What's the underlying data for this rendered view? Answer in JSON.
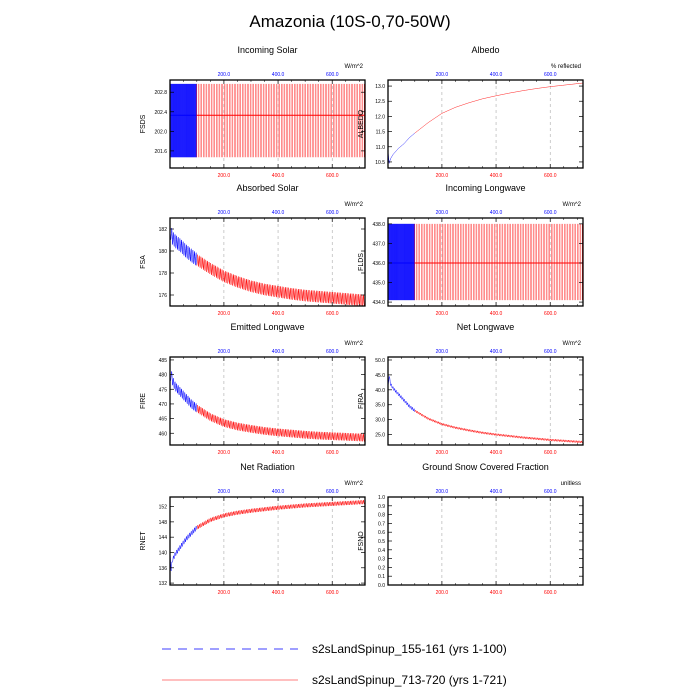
{
  "figure": {
    "title": "Amazonia (10S-0,70-50W)",
    "legend": [
      {
        "label": "s2sLandSpinup_155-161 (yrs 1-100)",
        "color": "#0000ff",
        "style": "dashed"
      },
      {
        "label": "s2sLandSpinup_713-720 (yrs 1-721)",
        "color": "#ff0000",
        "style": "solid"
      }
    ],
    "x_ticks": [
      "200.0",
      "400.0",
      "600.0"
    ]
  },
  "chart_data": [
    {
      "type": "line",
      "title": "Incoming Solar",
      "ylabel": "FSDS",
      "units": "W/m^2",
      "xlim": [
        1,
        721
      ],
      "ylim": [
        201.25,
        203.05
      ],
      "yticks": [
        "201.6",
        "202.0",
        "202.4",
        "202.8"
      ],
      "yticks_values": [
        201.6,
        202.0,
        202.4,
        202.8
      ],
      "series": [
        {
          "name": "s2sLandSpinup_155-161 (yrs 1-100)",
          "color": "#0000ff",
          "band_low": [
            201.47,
            201.47
          ],
          "band_high": [
            202.97,
            202.97
          ],
          "band_mid": [
            202.33,
            202.33
          ],
          "x": [
            1,
            100
          ]
        },
        {
          "name": "s2sLandSpinup_713-720 (yrs 1-721)",
          "color": "#ff0000",
          "band_low": [
            201.47,
            201.47
          ],
          "band_high": [
            202.97,
            202.97
          ],
          "band_mid": [
            202.33,
            202.33
          ],
          "x": [
            100,
            721
          ]
        }
      ]
    },
    {
      "type": "line",
      "title": "Albedo",
      "ylabel": "ALBEDO",
      "units": "% reflected",
      "xlim": [
        1,
        721
      ],
      "ylim": [
        10.3,
        13.2
      ],
      "yticks": [
        "10.5",
        "11.0",
        "11.5",
        "12.0",
        "12.5",
        "13.0"
      ],
      "yticks_values": [
        10.5,
        11.0,
        11.5,
        12.0,
        12.5,
        13.0
      ],
      "series": [
        {
          "name": "s2sLandSpinup_155-161 (yrs 1-100)",
          "color": "#0000ff",
          "x": [
            1,
            5,
            10,
            20,
            40,
            60,
            80,
            100
          ],
          "y": [
            10.9,
            10.45,
            10.6,
            10.75,
            10.95,
            11.1,
            11.3,
            11.45
          ]
        },
        {
          "name": "s2sLandSpinup_713-720 (yrs 1-721)",
          "color": "#ff0000",
          "x": [
            100,
            150,
            200,
            250,
            300,
            350,
            400,
            450,
            500,
            550,
            600,
            650,
            700,
            721
          ],
          "y": [
            11.45,
            11.8,
            12.1,
            12.3,
            12.45,
            12.58,
            12.68,
            12.77,
            12.85,
            12.92,
            12.98,
            13.03,
            13.08,
            13.1
          ]
        }
      ]
    },
    {
      "type": "line",
      "title": "Absorbed Solar",
      "ylabel": "FSA",
      "units": "W/m^2",
      "xlim": [
        1,
        721
      ],
      "ylim": [
        175.0,
        183.0
      ],
      "yticks": [
        "176",
        "178",
        "180",
        "182"
      ],
      "yticks_values": [
        176,
        178,
        180,
        182
      ],
      "series": [
        {
          "name": "s2sLandSpinup_155-161 (yrs 1-100)",
          "color": "#0000ff",
          "x": [
            1,
            5,
            10,
            20,
            40,
            60,
            80,
            100
          ],
          "y": [
            180.8,
            181.8,
            181.2,
            180.9,
            180.5,
            180.0,
            179.6,
            179.2
          ],
          "amp": 0.6
        },
        {
          "name": "s2sLandSpinup_713-720 (yrs 1-721)",
          "color": "#ff0000",
          "x": [
            100,
            150,
            200,
            250,
            300,
            350,
            400,
            450,
            500,
            550,
            600,
            650,
            700,
            721
          ],
          "y": [
            179.2,
            178.4,
            177.7,
            177.2,
            176.8,
            176.5,
            176.3,
            176.1,
            175.95,
            175.85,
            175.75,
            175.65,
            175.55,
            175.5
          ],
          "amp": 0.6
        }
      ]
    },
    {
      "type": "line",
      "title": "Incoming Longwave",
      "ylabel": "FLDS",
      "units": "W/m^2",
      "xlim": [
        1,
        721
      ],
      "ylim": [
        433.8,
        438.3
      ],
      "yticks": [
        "434.0",
        "435.0",
        "436.0",
        "437.0",
        "438.0"
      ],
      "yticks_values": [
        434,
        435,
        436,
        437,
        438
      ],
      "series": [
        {
          "name": "s2sLandSpinup_155-161 (yrs 1-100)",
          "color": "#0000ff",
          "band_low": [
            434.1,
            434.1
          ],
          "band_high": [
            438.0,
            438.0
          ],
          "band_mid": [
            436.0,
            436.0
          ],
          "x": [
            1,
            100
          ]
        },
        {
          "name": "s2sLandSpinup_713-720 (yrs 1-721)",
          "color": "#ff0000",
          "band_low": [
            434.1,
            434.1
          ],
          "band_high": [
            438.0,
            438.0
          ],
          "band_mid": [
            436.0,
            436.0
          ],
          "x": [
            100,
            721
          ]
        }
      ]
    },
    {
      "type": "line",
      "title": "Emitted Longwave",
      "ylabel": "FIRE",
      "units": "W/m^2",
      "xlim": [
        1,
        721
      ],
      "ylim": [
        456.0,
        486.0
      ],
      "yticks": [
        "460",
        "465",
        "470",
        "475",
        "480",
        "485"
      ],
      "yticks_values": [
        460,
        465,
        470,
        475,
        480,
        485
      ],
      "series": [
        {
          "name": "s2sLandSpinup_155-161 (yrs 1-100)",
          "color": "#0000ff",
          "x": [
            1,
            5,
            10,
            20,
            40,
            60,
            80,
            100
          ],
          "y": [
            475,
            481,
            478,
            476,
            474,
            472,
            470,
            468.5
          ],
          "amp": 1.5
        },
        {
          "name": "s2sLandSpinup_713-720 (yrs 1-721)",
          "color": "#ff0000",
          "x": [
            100,
            150,
            200,
            250,
            300,
            350,
            400,
            450,
            500,
            550,
            600,
            650,
            700,
            721
          ],
          "y": [
            468.5,
            465.5,
            463.5,
            462.3,
            461.5,
            460.8,
            460.3,
            459.9,
            459.5,
            459.2,
            459.0,
            458.8,
            458.6,
            458.5
          ],
          "amp": 1.5
        }
      ]
    },
    {
      "type": "line",
      "title": "Net Longwave",
      "ylabel": "FIRA",
      "units": "W/m^2",
      "xlim": [
        1,
        721
      ],
      "ylim": [
        21.5,
        51.0
      ],
      "yticks": [
        "25.0",
        "30.0",
        "35.0",
        "40.0",
        "45.0",
        "50.0"
      ],
      "yticks_values": [
        25,
        30,
        35,
        40,
        45,
        50
      ],
      "series": [
        {
          "name": "s2sLandSpinup_155-161 (yrs 1-100)",
          "color": "#0000ff",
          "x": [
            1,
            5,
            10,
            20,
            40,
            60,
            80,
            100
          ],
          "y": [
            40,
            45,
            42,
            40.5,
            38.5,
            36.5,
            34.5,
            33
          ],
          "amp": 0.5
        },
        {
          "name": "s2sLandSpinup_713-720 (yrs 1-721)",
          "color": "#ff0000",
          "x": [
            100,
            150,
            200,
            250,
            300,
            350,
            400,
            450,
            500,
            550,
            600,
            650,
            700,
            721
          ],
          "y": [
            33,
            30.3,
            28.5,
            27.3,
            26.4,
            25.6,
            25.0,
            24.5,
            24.0,
            23.6,
            23.2,
            22.9,
            22.6,
            22.5
          ],
          "amp": 0.4
        }
      ]
    },
    {
      "type": "line",
      "title": "Net Radiation",
      "ylabel": "RNET",
      "units": "W/m^2",
      "xlim": [
        1,
        721
      ],
      "ylim": [
        131.5,
        154.5
      ],
      "yticks": [
        "132",
        "136",
        "140",
        "144",
        "148",
        "152"
      ],
      "yticks_values": [
        132,
        136,
        140,
        144,
        148,
        152
      ],
      "series": [
        {
          "name": "s2sLandSpinup_155-161 (yrs 1-100)",
          "color": "#0000ff",
          "x": [
            1,
            5,
            10,
            20,
            40,
            60,
            80,
            100
          ],
          "y": [
            140,
            135.5,
            138,
            139.5,
            141.5,
            143.5,
            145,
            146.5
          ],
          "amp": 0.6
        },
        {
          "name": "s2sLandSpinup_713-720 (yrs 1-721)",
          "color": "#ff0000",
          "x": [
            100,
            150,
            200,
            250,
            300,
            350,
            400,
            450,
            500,
            550,
            600,
            650,
            700,
            721
          ],
          "y": [
            146.5,
            148.5,
            149.7,
            150.4,
            150.9,
            151.3,
            151.7,
            152.0,
            152.3,
            152.5,
            152.7,
            152.9,
            153.1,
            153.2
          ],
          "amp": 0.6
        }
      ]
    },
    {
      "type": "line",
      "title": "Ground Snow Covered Fraction",
      "ylabel": "FSNO",
      "units": "unitless",
      "xlim": [
        1,
        721
      ],
      "ylim": [
        0.0,
        1.0
      ],
      "yticks": [
        "0.0",
        "0.1",
        "0.2",
        "0.3",
        "0.4",
        "0.5",
        "0.6",
        "0.7",
        "0.8",
        "0.9",
        "1.0"
      ],
      "yticks_values": [
        0,
        0.1,
        0.2,
        0.3,
        0.4,
        0.5,
        0.6,
        0.7,
        0.8,
        0.9,
        1.0
      ],
      "series": []
    }
  ]
}
